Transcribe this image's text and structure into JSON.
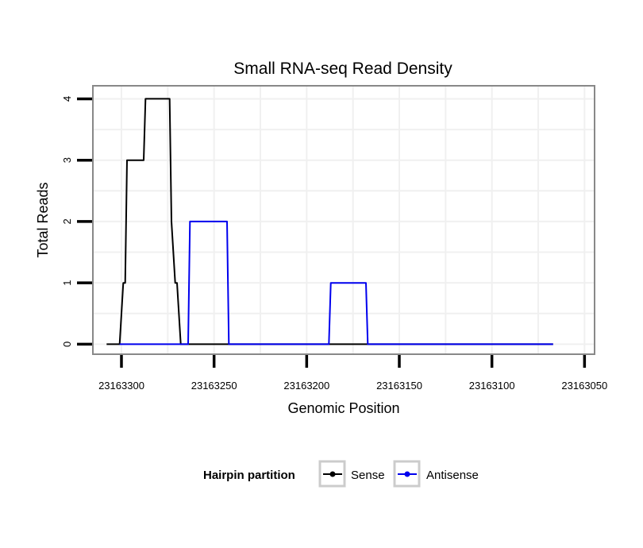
{
  "chart_data": {
    "type": "line",
    "title": "Small RNA-seq Read Density",
    "xlabel": "Genomic Position",
    "ylabel": "Total Reads",
    "xlim": [
      23163315,
      23163045
    ],
    "ylim": [
      -0.15,
      4.2
    ],
    "x_reversed": true,
    "xticks": [
      23163300,
      23163250,
      23163200,
      23163150,
      23163100,
      23163050
    ],
    "xtick_labels": [
      "23163300",
      "23163250",
      "23163200",
      "23163150",
      "23163100",
      "23163050"
    ],
    "yticks": [
      0,
      1,
      2,
      3,
      4
    ],
    "ytick_labels": [
      "0",
      "1",
      "2",
      "3",
      "4"
    ],
    "grid": true,
    "legend": {
      "title": "Hairpin partition",
      "position": "bottom",
      "entries": [
        "Sense",
        "Antisense"
      ]
    },
    "series": [
      {
        "name": "Sense",
        "color": "#000000",
        "x": [
          23163308,
          23163301,
          23163299,
          23163298,
          23163297,
          23163288,
          23163287,
          23163274,
          23163273,
          23163271,
          23163270,
          23163268,
          23163067
        ],
        "y": [
          0,
          0,
          1,
          1,
          3,
          3,
          4,
          4,
          2,
          1,
          1,
          0,
          0
        ]
      },
      {
        "name": "Antisense",
        "color": "#0000ee",
        "x": [
          23163301,
          23163264,
          23163263,
          23163243,
          23163242,
          23163188,
          23163187,
          23163168,
          23163167,
          23163067
        ],
        "y": [
          0,
          0,
          2,
          2,
          0,
          0,
          1,
          1,
          0,
          0
        ]
      }
    ]
  }
}
